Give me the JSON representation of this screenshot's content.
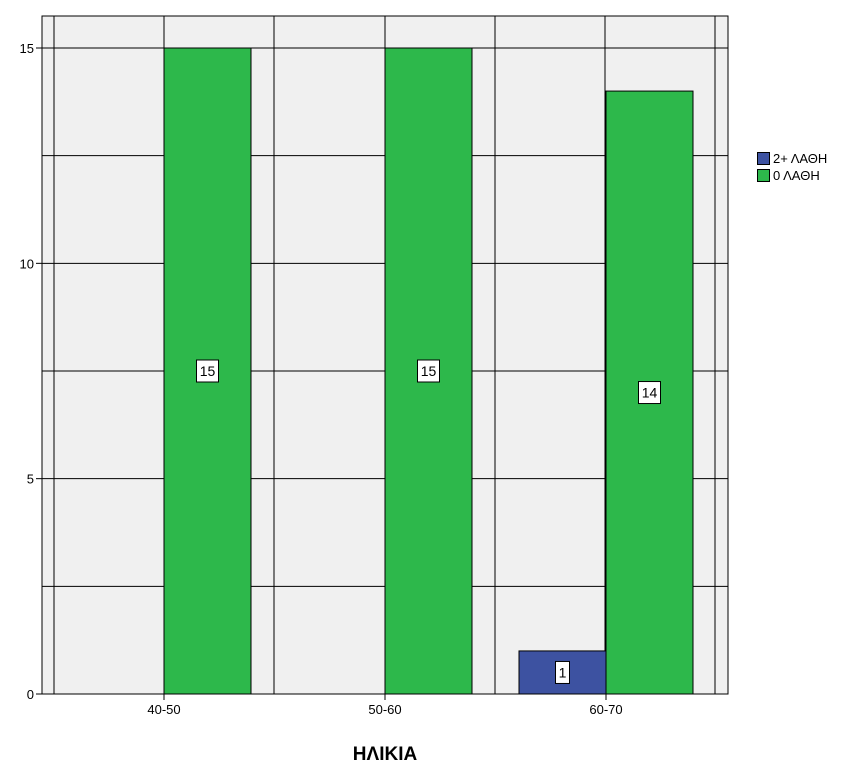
{
  "chart_data": {
    "type": "bar",
    "categories": [
      "40-50",
      "50-60",
      "60-70"
    ],
    "series": [
      {
        "name": "2+ ΛΑΘΗ",
        "values": [
          0,
          0,
          1
        ],
        "color": "#3d52a1"
      },
      {
        "name": "0 ΛΑΘΗ",
        "values": [
          15,
          15,
          14
        ],
        "color": "#2db84b"
      }
    ],
    "data_labels": [
      "",
      "",
      "1",
      "15",
      "15",
      "14"
    ],
    "title": "",
    "xlabel": "ΗΛΙΚΙΑ",
    "ylabel": "",
    "ylim": [
      0,
      16
    ],
    "yticks": [
      "0",
      "5",
      "10",
      "15"
    ],
    "grid": true,
    "legend_position": "right"
  }
}
